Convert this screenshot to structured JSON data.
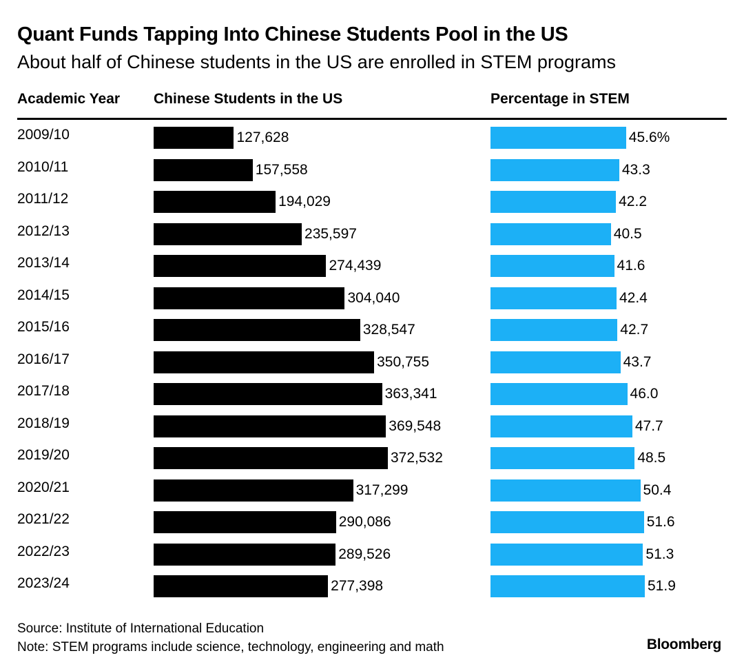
{
  "title": "Quant Funds Tapping Into Chinese Students Pool in the US",
  "subtitle": "About half of Chinese students in the US are enrolled in STEM programs",
  "columns": {
    "year": "Academic Year",
    "students": "Chinese Students in the US",
    "stem": "Percentage in STEM"
  },
  "footer": {
    "source": "Source: Institute of International Education",
    "note": "Note: STEM programs include science, technology, engineering and math",
    "brand": "Bloomberg"
  },
  "colors": {
    "students_bar": "#000000",
    "stem_bar": "#1cb0f6"
  },
  "chart_data": [
    {
      "type": "bar",
      "orientation": "horizontal",
      "title": "Chinese Students in the US",
      "categories": [
        "2009/10",
        "2010/11",
        "2011/12",
        "2012/13",
        "2013/14",
        "2014/15",
        "2015/16",
        "2016/17",
        "2017/18",
        "2018/19",
        "2019/20",
        "2020/21",
        "2021/22",
        "2022/23",
        "2023/24"
      ],
      "values": [
        127628,
        157558,
        194029,
        235597,
        274439,
        304040,
        328547,
        350755,
        363341,
        369548,
        372532,
        317299,
        290086,
        289526,
        277398
      ],
      "value_labels": [
        "127,628",
        "157,558",
        "194,029",
        "235,597",
        "274,439",
        "304,040",
        "328,547",
        "350,755",
        "363,341",
        "369,548",
        "372,532",
        "317,299",
        "290,086",
        "289,526",
        "277,398"
      ],
      "xlim": [
        0,
        372532
      ],
      "color": "#000000"
    },
    {
      "type": "bar",
      "orientation": "horizontal",
      "title": "Percentage in STEM",
      "categories": [
        "2009/10",
        "2010/11",
        "2011/12",
        "2012/13",
        "2013/14",
        "2014/15",
        "2015/16",
        "2016/17",
        "2017/18",
        "2018/19",
        "2019/20",
        "2020/21",
        "2021/22",
        "2022/23",
        "2023/24"
      ],
      "values": [
        45.6,
        43.3,
        42.2,
        40.5,
        41.6,
        42.4,
        42.7,
        43.7,
        46.0,
        47.7,
        48.5,
        50.4,
        51.6,
        51.3,
        51.9
      ],
      "value_labels": [
        "45.6%",
        "43.3",
        "42.2",
        "40.5",
        "41.6",
        "42.4",
        "42.7",
        "43.7",
        "46.0",
        "47.7",
        "48.5",
        "50.4",
        "51.6",
        "51.3",
        "51.9"
      ],
      "xlim": [
        0,
        51.9
      ],
      "color": "#1cb0f6"
    }
  ]
}
